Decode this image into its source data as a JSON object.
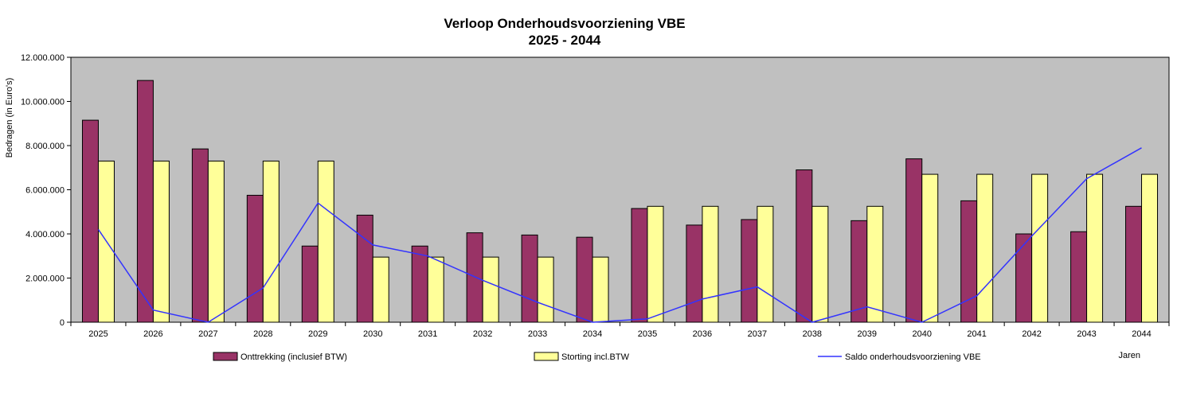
{
  "chart_data": {
    "type": "bar",
    "title": [
      "Verloop Onderhoudsvoorziening VBE",
      "2025 - 2044"
    ],
    "xlabel": "Jaren",
    "ylabel": "Bedragen (in Euro's)",
    "ylim": [
      0,
      12000000
    ],
    "yticks": [
      0,
      2000000,
      4000000,
      6000000,
      8000000,
      10000000,
      12000000
    ],
    "ytick_labels": [
      "0",
      "2.000.000",
      "4.000.000",
      "6.000.000",
      "8.000.000",
      "10.000.000",
      "12.000.000"
    ],
    "grid": false,
    "legend_position": "bottom",
    "plot_background": "#c0c0c0",
    "categories": [
      "2025",
      "2026",
      "2027",
      "2028",
      "2029",
      "2030",
      "2031",
      "2032",
      "2033",
      "2034",
      "2035",
      "2036",
      "2037",
      "2038",
      "2039",
      "2040",
      "2041",
      "2042",
      "2043",
      "2044"
    ],
    "series": [
      {
        "name": "Onttrekking (inclusief BTW)",
        "kind": "bar",
        "color": "#993366",
        "values": [
          9150000,
          10950000,
          7850000,
          5750000,
          3450000,
          4850000,
          3450000,
          4050000,
          3950000,
          3850000,
          5150000,
          4400000,
          4650000,
          6900000,
          4600000,
          7400000,
          5500000,
          4000000,
          4100000,
          5250000
        ]
      },
      {
        "name": "Storting incl.BTW",
        "kind": "bar",
        "color": "#ffff99",
        "values": [
          7300000,
          7300000,
          7300000,
          7300000,
          7300000,
          2950000,
          2950000,
          2950000,
          2950000,
          2950000,
          5250000,
          5250000,
          5250000,
          5250000,
          5250000,
          6700000,
          6700000,
          6700000,
          6700000,
          6700000
        ]
      },
      {
        "name": "Saldo onderhoudsvoorziening VBE",
        "kind": "line",
        "color": "#3333ff",
        "values": [
          4200000,
          550000,
          0,
          1550000,
          5400000,
          3500000,
          3000000,
          1900000,
          900000,
          0,
          150000,
          1050000,
          1600000,
          0,
          700000,
          0,
          1200000,
          3900000,
          6500000,
          7900000
        ]
      }
    ]
  }
}
